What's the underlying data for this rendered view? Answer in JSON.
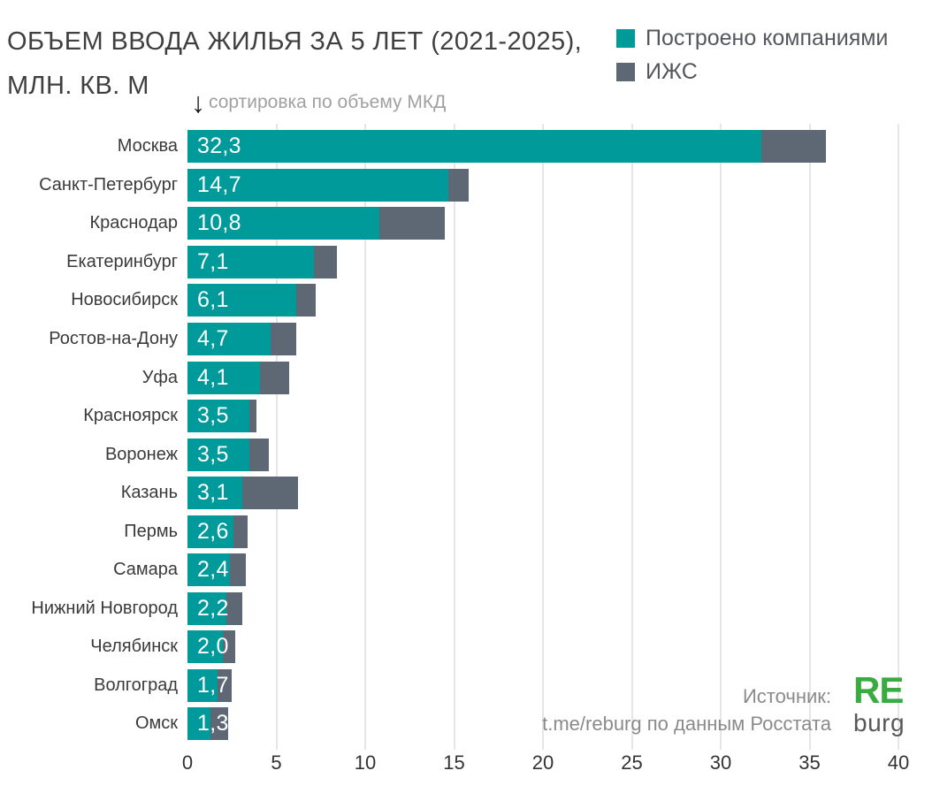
{
  "title": {
    "line1": "ОБЪЕМ ВВОДА ЖИЛЬЯ ЗА 5 ЛЕТ (2021-2025),",
    "line2": "МЛН. КВ. М"
  },
  "legend": {
    "items": [
      {
        "label": "Построено компаниями",
        "color": "#009a9a"
      },
      {
        "label": "ИЖС",
        "color": "#5e6774"
      }
    ]
  },
  "sort_note": {
    "arrow": "↓",
    "text": "сортировка по объему МКД"
  },
  "source": {
    "line1": "Источник:",
    "line2": "t.me/reburg по данным Росстата"
  },
  "logo": {
    "top": "RE",
    "bottom": "burg",
    "top_color": "#3aab40",
    "bottom_color": "#58585a"
  },
  "colors": {
    "bar_mkd": "#009a9a",
    "bar_izhs": "#5e6774",
    "gridline": "#e6e6e6",
    "value_text": "#ffffff"
  },
  "chart_data": {
    "type": "bar",
    "orientation": "horizontal",
    "stacked": true,
    "title": "ОБЪЕМ ВВОДА ЖИЛЬЯ ЗА 5 ЛЕТ (2021-2025), МЛН. КВ. М",
    "xlabel": "",
    "ylabel": "",
    "xlim": [
      0,
      40
    ],
    "xticks": [
      0,
      5,
      10,
      15,
      20,
      25,
      30,
      35,
      40
    ],
    "grid": "vertical",
    "legend_position": "top-right",
    "sorted_by": "объем МКД, по убыванию",
    "categories": [
      "Москва",
      "Санкт-Петербург",
      "Краснодар",
      "Екатеринбург",
      "Новосибирск",
      "Ростов-на-Дону",
      "Уфа",
      "Красноярск",
      "Воронеж",
      "Казань",
      "Пермь",
      "Самара",
      "Нижний Новгород",
      "Челябинск",
      "Волгоград",
      "Омск"
    ],
    "series": [
      {
        "name": "Построено компаниями",
        "color": "#009a9a",
        "values": [
          32.3,
          14.7,
          10.8,
          7.1,
          6.1,
          4.7,
          4.1,
          3.5,
          3.5,
          3.1,
          2.6,
          2.4,
          2.2,
          2.0,
          1.7,
          1.3
        ],
        "data_labels": [
          "32,3",
          "14,7",
          "10,8",
          "7,1",
          "6,1",
          "4,7",
          "4,1",
          "3,5",
          "3,5",
          "3,1",
          "2,6",
          "2,4",
          "2,2",
          "2,0",
          "1,7",
          "1,3"
        ]
      },
      {
        "name": "ИЖС",
        "color": "#5e6774",
        "values": [
          3.6,
          1.1,
          3.7,
          1.3,
          1.1,
          1.4,
          1.6,
          0.4,
          1.1,
          3.1,
          0.8,
          0.9,
          0.9,
          0.7,
          0.8,
          1.0
        ],
        "data_labels": []
      }
    ]
  }
}
